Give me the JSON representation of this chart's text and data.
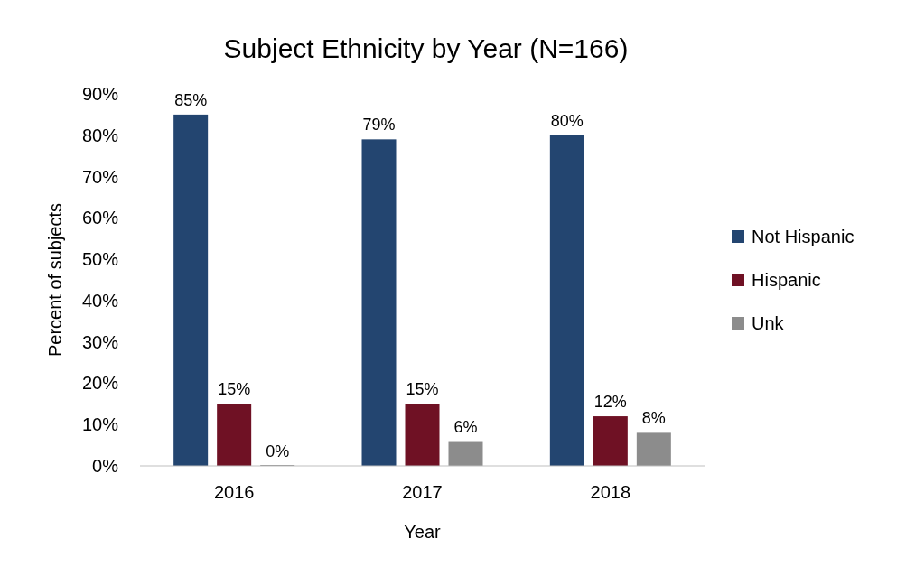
{
  "chart_data": {
    "type": "bar",
    "title": "Subject Ethnicity by Year (N=166)",
    "xlabel": "Year",
    "ylabel": "Percent of subjects",
    "categories": [
      "2016",
      "2017",
      "2018"
    ],
    "series": [
      {
        "name": "Not Hispanic",
        "color": "#234570",
        "values": [
          85,
          79,
          80
        ],
        "value_labels": [
          "85%",
          "79%",
          "80%"
        ]
      },
      {
        "name": "Hispanic",
        "color": "#6f1124",
        "values": [
          15,
          15,
          12
        ],
        "value_labels": [
          "15%",
          "15%",
          "12%"
        ]
      },
      {
        "name": "Unk",
        "color": "#8c8c8c",
        "values": [
          0,
          6,
          8
        ],
        "value_labels": [
          "0%",
          "6%",
          "8%"
        ]
      }
    ],
    "ylim": [
      0,
      90
    ],
    "yticks": [
      {
        "value": 0,
        "label": "0%"
      },
      {
        "value": 10,
        "label": "10%"
      },
      {
        "value": 20,
        "label": "20%"
      },
      {
        "value": 30,
        "label": "30%"
      },
      {
        "value": 40,
        "label": "40%"
      },
      {
        "value": 50,
        "label": "50%"
      },
      {
        "value": 60,
        "label": "60%"
      },
      {
        "value": 70,
        "label": "70%"
      },
      {
        "value": 80,
        "label": "80%"
      },
      {
        "value": 90,
        "label": "90%"
      }
    ],
    "grid": false,
    "legend": "right"
  }
}
